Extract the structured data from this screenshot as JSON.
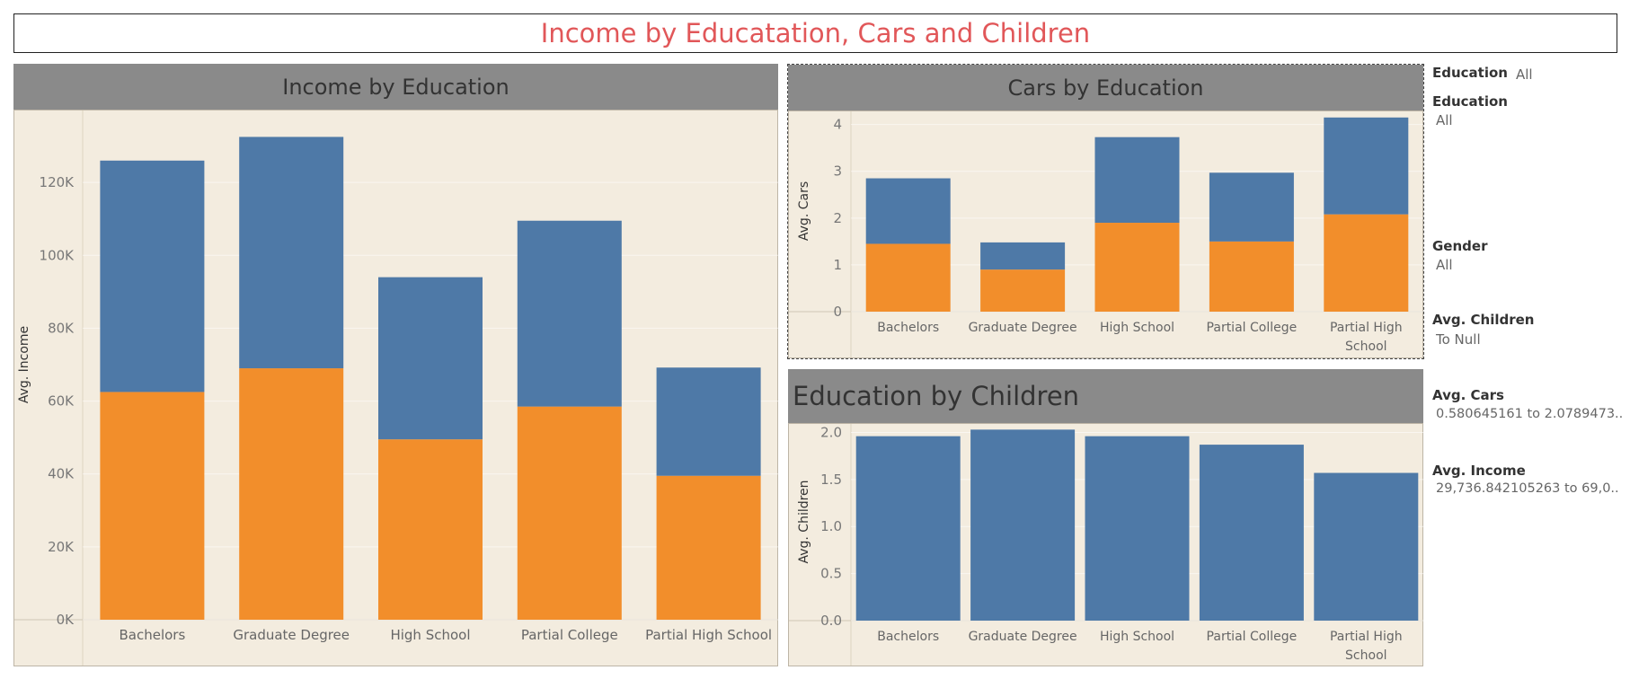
{
  "dashboard": {
    "title": "Income by Educatation, Cars and Children"
  },
  "colors": {
    "series_top": "#4e79a7",
    "series_bottom": "#f28e2b",
    "plot_bg": "#f3ecdf",
    "header_bg": "#8a8a8a",
    "title": "#e15759"
  },
  "chart_data": [
    {
      "id": "income",
      "type": "bar",
      "stacked": true,
      "title": "Income by Education",
      "xlabel": "",
      "ylabel": "Avg. Income",
      "ylim": [
        0,
        140000
      ],
      "yticks": [
        0,
        20000,
        40000,
        60000,
        80000,
        100000,
        120000
      ],
      "ytick_labels": [
        "0K",
        "20K",
        "40K",
        "60K",
        "80K",
        "100K",
        "120K"
      ],
      "categories": [
        "Bachelors",
        "Graduate Degree",
        "High School",
        "Partial College",
        "Partial High School"
      ],
      "category_label_lines": [
        [
          "Bachelors"
        ],
        [
          "Graduate Degree"
        ],
        [
          "High School"
        ],
        [
          "Partial College"
        ],
        [
          "Partial High School"
        ]
      ],
      "series": [
        {
          "values": [
            62500,
            69000,
            49500,
            58500,
            39500
          ],
          "color": "#f28e2b"
        },
        {
          "values": [
            63500,
            63500,
            44500,
            51000,
            29700
          ],
          "color": "#4e79a7"
        }
      ]
    },
    {
      "id": "cars",
      "type": "bar",
      "stacked": true,
      "title": "Cars by Education",
      "xlabel": "",
      "ylabel": "Avg. Cars",
      "ylim": [
        0,
        4.3
      ],
      "yticks": [
        0,
        1,
        2,
        3,
        4
      ],
      "ytick_labels": [
        "0",
        "1",
        "2",
        "3",
        "4"
      ],
      "categories": [
        "Bachelors",
        "Graduate Degree",
        "High School",
        "Partial College",
        "Partial High School"
      ],
      "category_label_lines": [
        [
          "Bachelors"
        ],
        [
          "Graduate Degree"
        ],
        [
          "High School"
        ],
        [
          "Partial College"
        ],
        [
          "Partial High",
          "School"
        ]
      ],
      "series": [
        {
          "values": [
            1.45,
            0.9,
            1.9,
            1.5,
            2.08
          ],
          "color": "#f28e2b"
        },
        {
          "values": [
            1.4,
            0.58,
            1.83,
            1.47,
            2.07
          ],
          "color": "#4e79a7"
        }
      ]
    },
    {
      "id": "children",
      "type": "bar",
      "stacked": false,
      "title": "Education by Children",
      "xlabel": "",
      "ylabel": "Avg. Children",
      "ylim": [
        0,
        2.1
      ],
      "yticks": [
        0,
        0.5,
        1,
        1.5,
        2
      ],
      "ytick_labels": [
        "0.0",
        "0.5",
        "1.0",
        "1.5",
        "2.0"
      ],
      "categories": [
        "Bachelors",
        "Graduate Degree",
        "High School",
        "Partial College",
        "Partial High School"
      ],
      "category_label_lines": [
        [
          "Bachelors"
        ],
        [
          "Graduate Degree"
        ],
        [
          "High School"
        ],
        [
          "Partial College"
        ],
        [
          "Partial High",
          "School"
        ]
      ],
      "series": [
        {
          "values": [
            1.96,
            2.03,
            1.96,
            1.87,
            1.57
          ],
          "color": "#4e79a7"
        }
      ]
    }
  ],
  "filters": {
    "education_1": {
      "label": "Education",
      "value": "All"
    },
    "education_2": {
      "label": "Education",
      "value": "All"
    },
    "gender": {
      "label": "Gender",
      "value": "All"
    },
    "avg_children": {
      "label": "Avg. Children",
      "value": "To Null"
    },
    "avg_cars": {
      "label": "Avg. Cars",
      "value": "0.580645161 to 2.0789473.."
    },
    "avg_income": {
      "label": "Avg. Income",
      "value": "29,736.842105263 to 69,0.."
    }
  }
}
